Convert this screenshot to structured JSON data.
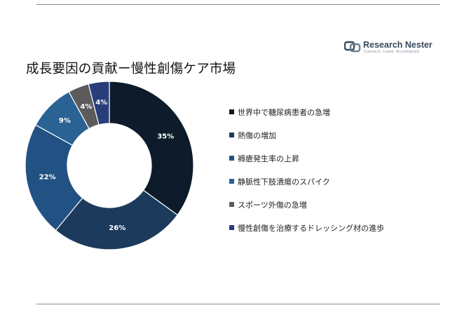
{
  "title": "成長要因の貢献ー慢性創傷ケア市場",
  "brand": {
    "name": "Research Nester",
    "tagline": "Connect. Lead. Accomplish"
  },
  "chart_data": {
    "type": "pie",
    "variant": "donut",
    "categories": [
      "世界中で糖尿病患者の急増",
      "熱傷の増加",
      "褥瘡発生率の上昇",
      "静脈性下肢潰瘍のスパイク",
      "スポーツ外傷の急増",
      "慢性創傷を治療するドレッシング材の進歩"
    ],
    "values": [
      35,
      26,
      22,
      9,
      4,
      4
    ],
    "labels": [
      "35%",
      "26%",
      "22%",
      "9%",
      "4%",
      "4%"
    ],
    "colors": [
      "#0d1b2a",
      "#1c3a5c",
      "#225283",
      "#2a6294",
      "#5b5b5b",
      "#283e7b"
    ],
    "legend_position": "right"
  }
}
